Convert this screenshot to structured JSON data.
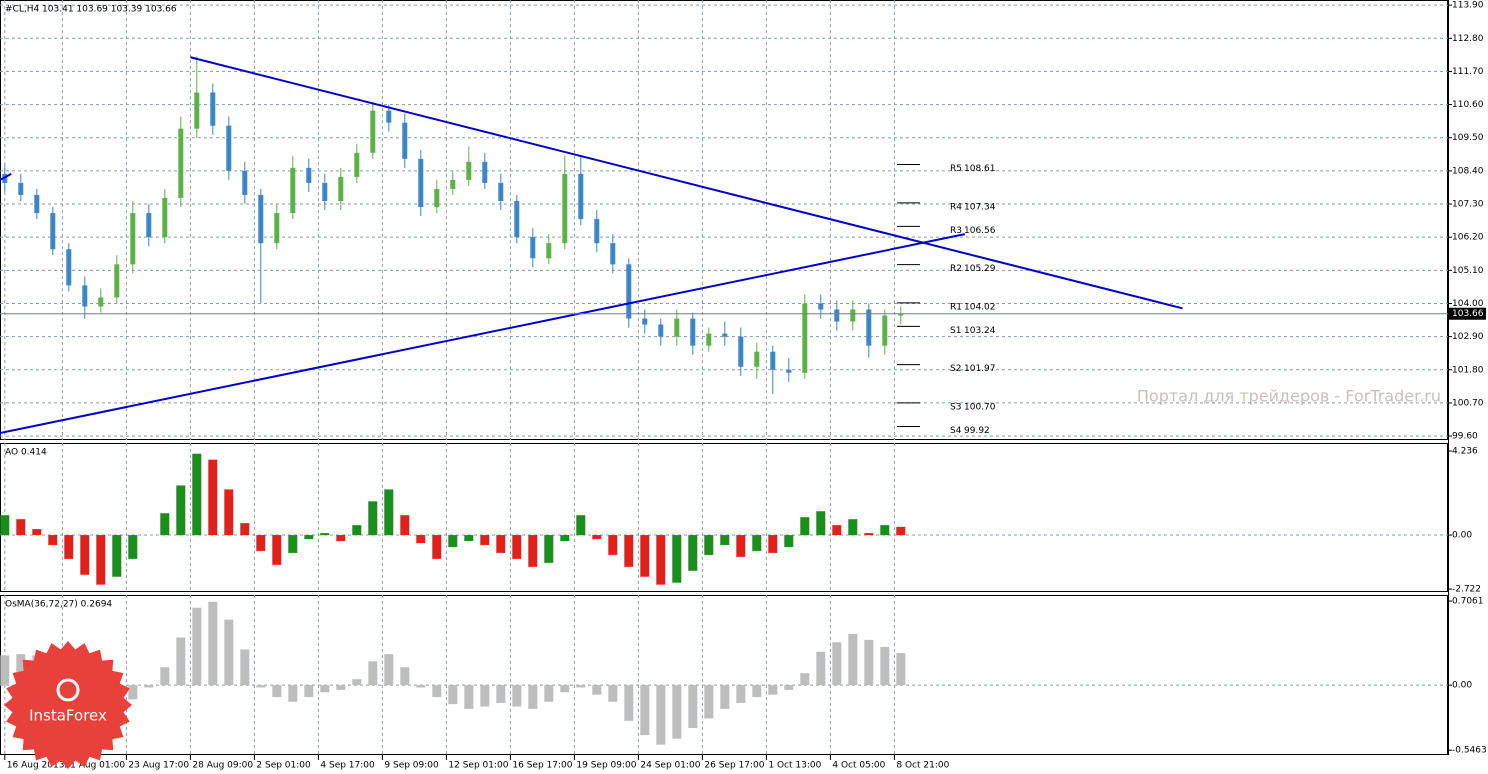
{
  "chart_data": [
    {
      "type": "candlestick",
      "title": "#CL,H4  103.41 103.69 103.39 103.66",
      "ylim": [
        99.47,
        114.07
      ],
      "xlim": [
        -0.3,
        90.2
      ],
      "grid": true,
      "up_color": "#5cb247",
      "down_color": "#3c86c8",
      "yticks": [
        {
          "value": 113.9,
          "label": "113.90"
        },
        {
          "value": 112.8,
          "label": "112.80"
        },
        {
          "value": 111.7,
          "label": "111.70"
        },
        {
          "value": 110.6,
          "label": "110.60"
        },
        {
          "value": 109.5,
          "label": "109.50"
        },
        {
          "value": 108.4,
          "label": "108.40"
        },
        {
          "value": 107.3,
          "label": "107.30"
        },
        {
          "value": 106.2,
          "label": "106.20"
        },
        {
          "value": 105.1,
          "label": "105.10"
        },
        {
          "value": 104.0,
          "label": "104.00"
        },
        {
          "value": 102.9,
          "label": "102.90"
        },
        {
          "value": 101.8,
          "label": "101.80"
        },
        {
          "value": 100.7,
          "label": "100.70"
        },
        {
          "value": 99.6,
          "label": "99.60"
        }
      ],
      "xticks": [
        {
          "value": 0,
          "label": "16 Aug 2013"
        },
        {
          "value": 3.6,
          "label": "21 Aug 01:00"
        },
        {
          "value": 7.6,
          "label": "23 Aug 17:00"
        },
        {
          "value": 11.6,
          "label": "28 Aug 09:00"
        },
        {
          "value": 15.6,
          "label": "2 Sep 01:00"
        },
        {
          "value": 19.6,
          "label": "4 Sep 17:00"
        },
        {
          "value": 23.6,
          "label": "9 Sep 09:00"
        },
        {
          "value": 27.6,
          "label": "12 Sep 01:00"
        },
        {
          "value": 31.6,
          "label": "16 Sep 17:00"
        },
        {
          "value": 35.6,
          "label": "19 Sep 09:00"
        },
        {
          "value": 39.6,
          "label": "24 Sep 01:00"
        },
        {
          "value": 43.6,
          "label": "26 Sep 17:00"
        },
        {
          "value": 47.6,
          "label": "1 Oct 13:00"
        },
        {
          "value": 51.6,
          "label": "4 Oct 05:00"
        },
        {
          "value": 55.6,
          "label": "8 Oct 21:00"
        }
      ],
      "open": [
        108.3,
        108.0,
        107.6,
        107.0,
        105.8,
        104.6,
        103.9,
        104.2,
        105.3,
        107.0,
        106.2,
        107.5,
        109.8,
        111.0,
        109.9,
        108.4,
        107.6,
        106.0,
        107.0,
        108.5,
        108.0,
        107.4,
        108.2,
        109.0,
        110.4,
        110.0,
        108.8,
        107.2,
        107.8,
        108.1,
        108.7,
        108.0,
        107.4,
        106.2,
        105.5,
        106.0,
        108.3,
        106.8,
        106.0,
        105.3,
        103.5,
        103.3,
        102.9,
        103.5,
        102.6,
        103.0,
        102.9,
        101.9,
        102.4,
        101.8,
        101.7,
        104.0,
        103.8,
        103.4,
        103.8,
        102.6,
        103.6
      ],
      "high": [
        108.6,
        108.3,
        107.8,
        107.2,
        106.0,
        104.9,
        104.5,
        105.6,
        107.4,
        107.3,
        107.8,
        110.2,
        112.2,
        111.3,
        110.2,
        108.7,
        107.8,
        107.3,
        108.9,
        108.8,
        108.3,
        108.5,
        109.3,
        110.7,
        110.6,
        110.3,
        109.1,
        108.1,
        108.4,
        109.2,
        109.0,
        108.3,
        107.6,
        106.5,
        106.3,
        108.9,
        108.9,
        107.1,
        106.3,
        105.5,
        103.8,
        103.5,
        103.8,
        103.7,
        103.2,
        103.4,
        103.2,
        102.7,
        102.6,
        102.2,
        104.3,
        104.3,
        104.1,
        104.1,
        104.0,
        103.8,
        103.9
      ],
      "low": [
        107.7,
        107.4,
        106.8,
        105.6,
        104.4,
        103.5,
        103.7,
        104.0,
        105.0,
        105.9,
        106.0,
        107.2,
        109.5,
        109.6,
        108.1,
        107.3,
        104.0,
        105.8,
        106.8,
        107.7,
        107.1,
        107.1,
        108.0,
        108.8,
        109.7,
        108.5,
        106.9,
        107.0,
        107.6,
        107.9,
        107.8,
        107.1,
        106.0,
        105.2,
        105.3,
        105.8,
        106.6,
        105.7,
        105.0,
        103.2,
        103.0,
        102.6,
        102.6,
        102.3,
        102.4,
        102.6,
        101.6,
        101.5,
        101.0,
        101.4,
        101.5,
        103.5,
        103.1,
        103.1,
        102.2,
        102.3,
        103.3
      ],
      "close": [
        108.0,
        107.6,
        107.0,
        105.8,
        104.6,
        103.9,
        104.2,
        105.3,
        107.0,
        106.2,
        107.5,
        109.8,
        111.0,
        109.9,
        108.4,
        107.6,
        106.0,
        107.0,
        108.5,
        108.0,
        107.4,
        108.2,
        109.0,
        110.4,
        110.0,
        108.8,
        107.2,
        107.8,
        108.1,
        108.7,
        108.0,
        107.4,
        106.2,
        105.5,
        106.0,
        108.3,
        106.8,
        106.0,
        105.3,
        103.5,
        103.3,
        102.9,
        103.5,
        102.6,
        103.0,
        102.9,
        101.9,
        102.4,
        101.8,
        101.7,
        104.0,
        103.8,
        103.4,
        103.8,
        102.6,
        103.6,
        103.66
      ],
      "trendlines": [
        {
          "color": "#0000c8",
          "x": [
            11.6,
            73.6
          ],
          "y": [
            112.17,
            103.84
          ]
        },
        {
          "color": "#0000c8",
          "x": [
            -0.3,
            60
          ],
          "y": [
            99.7,
            106.3
          ]
        },
        {
          "color": "#0000c8",
          "x": [
            -0.3,
            0.4
          ],
          "y": [
            108.1,
            108.3
          ]
        }
      ],
      "pivots": {
        "names": [
          "R5",
          "R4",
          "R3",
          "R2",
          "R1",
          "S1",
          "S2",
          "S3",
          "S4"
        ],
        "values": [
          108.61,
          107.34,
          106.56,
          105.29,
          104.02,
          103.24,
          101.97,
          100.7,
          99.92
        ],
        "value_labels": [
          "108.61",
          "107.34",
          "106.56",
          "105.29",
          "104.02",
          "103.24",
          "101.97",
          "100.70",
          "99.92"
        ]
      },
      "last": 103.66
    },
    {
      "type": "bar",
      "title": "AO 0.414",
      "ylim": [
        -2.87,
        4.64
      ],
      "up_color": "#1c8c1c",
      "down_color": "#e3211c",
      "yticks": [
        4.236,
        {
          "value": 0,
          "label": "0.00"
        },
        -2.722
      ],
      "values": [
        1.0,
        0.8,
        0.3,
        -0.5,
        -1.2,
        -2.0,
        -2.5,
        -2.1,
        -1.2,
        0.0,
        1.1,
        2.5,
        4.1,
        3.8,
        2.3,
        0.6,
        -0.8,
        -1.5,
        -0.9,
        -0.2,
        0.1,
        -0.3,
        0.5,
        1.7,
        2.3,
        1.0,
        -0.4,
        -1.2,
        -0.6,
        -0.3,
        -0.5,
        -0.9,
        -1.2,
        -1.6,
        -1.4,
        -0.3,
        1.0,
        -0.2,
        -1.0,
        -1.6,
        -2.1,
        -2.5,
        -2.4,
        -1.8,
        -1.0,
        -0.5,
        -1.1,
        -0.8,
        -0.9,
        -0.6,
        0.9,
        1.2,
        0.5,
        0.8,
        0.1,
        0.5,
        0.414
      ]
    },
    {
      "type": "bar",
      "title": "OsMA(36,72,27) 0.2694",
      "ylim": [
        -0.587,
        0.757
      ],
      "color": "#bdbdbd",
      "yticks": [
        0.7061,
        {
          "value": 0,
          "label": "0.00"
        },
        -0.5463
      ],
      "values": [
        0.25,
        0.26,
        0.25,
        0.2,
        0.15,
        0.1,
        0.02,
        -0.08,
        -0.12,
        -0.02,
        0.15,
        0.4,
        0.65,
        0.7,
        0.55,
        0.3,
        -0.02,
        -0.1,
        -0.14,
        -0.1,
        -0.06,
        -0.04,
        0.05,
        0.2,
        0.26,
        0.15,
        -0.02,
        -0.1,
        -0.16,
        -0.2,
        -0.18,
        -0.15,
        -0.18,
        -0.2,
        -0.14,
        -0.06,
        -0.02,
        -0.08,
        -0.14,
        -0.3,
        -0.42,
        -0.5,
        -0.45,
        -0.36,
        -0.28,
        -0.2,
        -0.15,
        -0.1,
        -0.08,
        -0.04,
        0.1,
        0.28,
        0.36,
        0.43,
        0.38,
        0.32,
        0.2694
      ]
    }
  ],
  "watermark": "Портал для трейдеров - ForTrader.ru",
  "logo": "InstaForex"
}
